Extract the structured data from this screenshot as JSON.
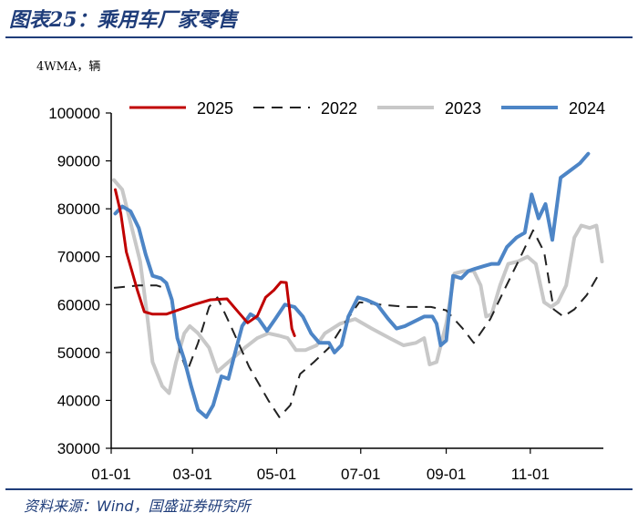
{
  "header": {
    "title": "图表25：乘用车厂家零售"
  },
  "footer": {
    "source": "资料来源：Wind，国盛证券研究所"
  },
  "chart_data": {
    "type": "line",
    "unit_label": "4WMA，辆",
    "ylim": [
      30000,
      100000
    ],
    "y_ticks": [
      30000,
      40000,
      50000,
      60000,
      70000,
      80000,
      90000,
      100000
    ],
    "x_ticks": [
      "01-01",
      "03-01",
      "05-01",
      "07-01",
      "09-01",
      "11-01"
    ],
    "x_tick_days": [
      0,
      59,
      120,
      181,
      243,
      304
    ],
    "x_range_days": [
      0,
      357
    ],
    "grid": false,
    "legend_position": "top",
    "series": [
      {
        "name": "2025",
        "color": "#c00000",
        "dash": "solid",
        "width": 3,
        "points": [
          [
            3,
            84000
          ],
          [
            7,
            79000
          ],
          [
            11,
            71000
          ],
          [
            15,
            67000
          ],
          [
            19,
            63000
          ],
          [
            24,
            58500
          ],
          [
            30,
            58000
          ],
          [
            40,
            58000
          ],
          [
            50,
            59000
          ],
          [
            60,
            60000
          ],
          [
            72,
            61000
          ],
          [
            84,
            61200
          ],
          [
            92,
            58500
          ],
          [
            99,
            56200
          ],
          [
            106,
            57600
          ],
          [
            112,
            61500
          ],
          [
            118,
            63000
          ],
          [
            123,
            64700
          ],
          [
            127,
            64600
          ],
          [
            131,
            55000
          ],
          [
            133,
            53500
          ]
        ]
      },
      {
        "name": "2022",
        "color": "#222222",
        "dash": "12 8",
        "width": 2,
        "points": [
          [
            2,
            63500
          ],
          [
            20,
            64000
          ],
          [
            33,
            64000
          ],
          [
            42,
            63200
          ],
          [
            50,
            50000
          ],
          [
            55,
            46000
          ],
          [
            63,
            52000
          ],
          [
            71,
            59500
          ],
          [
            77,
            61500
          ],
          [
            86,
            56000
          ],
          [
            100,
            47000
          ],
          [
            114,
            40000
          ],
          [
            122,
            36500
          ],
          [
            130,
            39000
          ],
          [
            137,
            45500
          ],
          [
            147,
            48000
          ],
          [
            158,
            51000
          ],
          [
            169,
            56000
          ],
          [
            180,
            60500
          ],
          [
            195,
            60000
          ],
          [
            215,
            59500
          ],
          [
            232,
            59500
          ],
          [
            243,
            58800
          ],
          [
            255,
            55000
          ],
          [
            263,
            52000
          ],
          [
            275,
            57000
          ],
          [
            285,
            63000
          ],
          [
            297,
            70000
          ],
          [
            306,
            75500
          ],
          [
            314,
            71000
          ],
          [
            321,
            59000
          ],
          [
            328,
            57500
          ],
          [
            336,
            59000
          ],
          [
            345,
            62000
          ],
          [
            355,
            67000
          ]
        ]
      },
      {
        "name": "2023",
        "color": "#c8c8c8",
        "dash": "solid",
        "width": 4,
        "points": [
          [
            2,
            86000
          ],
          [
            8,
            84000
          ],
          [
            15,
            76000
          ],
          [
            21,
            69000
          ],
          [
            26,
            58000
          ],
          [
            30,
            48000
          ],
          [
            37,
            43000
          ],
          [
            42,
            41500
          ],
          [
            47,
            48000
          ],
          [
            53,
            54000
          ],
          [
            57,
            55500
          ],
          [
            63,
            54000
          ],
          [
            71,
            51000
          ],
          [
            77,
            46000
          ],
          [
            85,
            48000
          ],
          [
            97,
            51000
          ],
          [
            106,
            53000
          ],
          [
            114,
            54000
          ],
          [
            122,
            53500
          ],
          [
            128,
            53000
          ],
          [
            134,
            50500
          ],
          [
            141,
            50500
          ],
          [
            149,
            51500
          ],
          [
            155,
            54000
          ],
          [
            166,
            56000
          ],
          [
            177,
            57000
          ],
          [
            189,
            55000
          ],
          [
            202,
            53000
          ],
          [
            212,
            51500
          ],
          [
            221,
            52000
          ],
          [
            227,
            53000
          ],
          [
            231,
            47500
          ],
          [
            236,
            48000
          ],
          [
            243,
            56000
          ],
          [
            249,
            66500
          ],
          [
            256,
            67000
          ],
          [
            263,
            67000
          ],
          [
            268,
            64000
          ],
          [
            272,
            57500
          ],
          [
            276,
            58000
          ],
          [
            282,
            64000
          ],
          [
            288,
            68500
          ],
          [
            295,
            69000
          ],
          [
            302,
            70000
          ],
          [
            308,
            68500
          ],
          [
            314,
            60500
          ],
          [
            319,
            59500
          ],
          [
            324,
            60500
          ],
          [
            330,
            64000
          ],
          [
            336,
            74000
          ],
          [
            341,
            76500
          ],
          [
            347,
            76000
          ],
          [
            352,
            76500
          ],
          [
            356,
            69000
          ]
        ]
      },
      {
        "name": "2024",
        "color": "#4d85c6",
        "dash": "solid",
        "width": 4,
        "points": [
          [
            3,
            79000
          ],
          [
            8,
            80500
          ],
          [
            14,
            79500
          ],
          [
            20,
            76000
          ],
          [
            25,
            70500
          ],
          [
            30,
            66000
          ],
          [
            36,
            65500
          ],
          [
            40,
            64500
          ],
          [
            44,
            61000
          ],
          [
            48,
            53000
          ],
          [
            53,
            48500
          ],
          [
            58,
            43000
          ],
          [
            63,
            38000
          ],
          [
            69,
            36500
          ],
          [
            74,
            39000
          ],
          [
            80,
            45000
          ],
          [
            85,
            44500
          ],
          [
            89,
            49000
          ],
          [
            95,
            55500
          ],
          [
            101,
            58000
          ],
          [
            107,
            57000
          ],
          [
            113,
            54500
          ],
          [
            119,
            57000
          ],
          [
            126,
            60000
          ],
          [
            133,
            59500
          ],
          [
            139,
            57500
          ],
          [
            145,
            54000
          ],
          [
            151,
            52000
          ],
          [
            158,
            52000
          ],
          [
            162,
            50000
          ],
          [
            167,
            51500
          ],
          [
            172,
            57500
          ],
          [
            179,
            61500
          ],
          [
            185,
            61000
          ],
          [
            193,
            60000
          ],
          [
            201,
            57000
          ],
          [
            207,
            55000
          ],
          [
            213,
            55500
          ],
          [
            220,
            56500
          ],
          [
            227,
            57500
          ],
          [
            233,
            57500
          ],
          [
            236,
            56000
          ],
          [
            239,
            51500
          ],
          [
            243,
            52500
          ],
          [
            248,
            66000
          ],
          [
            254,
            65500
          ],
          [
            259,
            67000
          ],
          [
            264,
            67500
          ],
          [
            270,
            68000
          ],
          [
            276,
            68500
          ],
          [
            281,
            68500
          ],
          [
            287,
            72000
          ],
          [
            294,
            74000
          ],
          [
            300,
            75000
          ],
          [
            305,
            83000
          ],
          [
            310,
            78000
          ],
          [
            315,
            81000
          ],
          [
            320,
            73500
          ],
          [
            326,
            86500
          ],
          [
            333,
            88000
          ],
          [
            340,
            89500
          ],
          [
            346,
            91500
          ]
        ]
      }
    ]
  }
}
